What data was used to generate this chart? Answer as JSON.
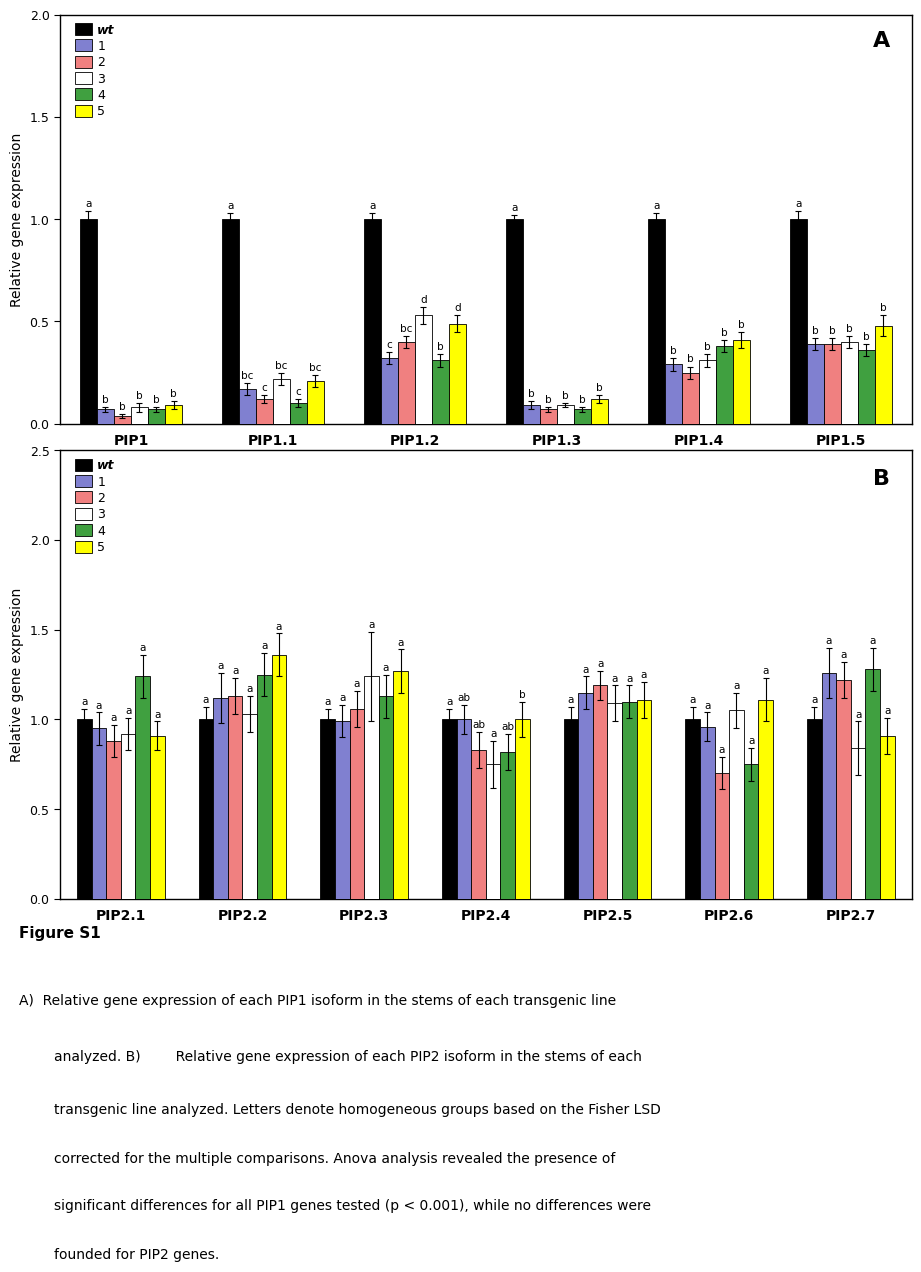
{
  "panel_A": {
    "groups": [
      "PIP1",
      "PIP1.1",
      "PIP1.2",
      "PIP1.3",
      "PIP1.4",
      "PIP1.5"
    ],
    "series_labels": [
      "wt",
      "1",
      "2",
      "3",
      "4",
      "5"
    ],
    "values": [
      [
        1.0,
        1.0,
        1.0,
        1.0,
        1.0,
        1.0
      ],
      [
        0.07,
        0.17,
        0.32,
        0.09,
        0.29,
        0.39
      ],
      [
        0.04,
        0.12,
        0.4,
        0.07,
        0.25,
        0.39
      ],
      [
        0.08,
        0.22,
        0.53,
        0.09,
        0.31,
        0.4
      ],
      [
        0.07,
        0.1,
        0.31,
        0.07,
        0.38,
        0.36
      ],
      [
        0.09,
        0.21,
        0.49,
        0.12,
        0.41,
        0.48
      ]
    ],
    "errors": [
      [
        0.04,
        0.03,
        0.03,
        0.02,
        0.03,
        0.04
      ],
      [
        0.01,
        0.03,
        0.03,
        0.02,
        0.03,
        0.03
      ],
      [
        0.01,
        0.02,
        0.03,
        0.01,
        0.03,
        0.03
      ],
      [
        0.02,
        0.03,
        0.04,
        0.01,
        0.03,
        0.03
      ],
      [
        0.01,
        0.02,
        0.03,
        0.01,
        0.03,
        0.03
      ],
      [
        0.02,
        0.03,
        0.04,
        0.02,
        0.04,
        0.05
      ]
    ],
    "letters": [
      [
        "a",
        "a",
        "a",
        "a",
        "a",
        "a"
      ],
      [
        "b",
        "bc",
        "c",
        "b",
        "b",
        "b"
      ],
      [
        "b",
        "c",
        "bc",
        "b",
        "b",
        "b"
      ],
      [
        "b",
        "bc",
        "d",
        "b",
        "b",
        "b"
      ],
      [
        "b",
        "c",
        "b",
        "b",
        "b",
        "b"
      ],
      [
        "b",
        "bc",
        "d",
        "b",
        "b",
        "b"
      ]
    ],
    "ylim": [
      0.0,
      2.0
    ],
    "yticks": [
      0.0,
      0.5,
      1.0,
      1.5,
      2.0
    ],
    "ylabel": "Relative gene expression",
    "panel_label": "A"
  },
  "panel_B": {
    "groups": [
      "PIP2.1",
      "PIP2.2",
      "PIP2.3",
      "PIP2.4",
      "PIP2.5",
      "PIP2.6",
      "PIP2.7"
    ],
    "series_labels": [
      "wt",
      "1",
      "2",
      "3",
      "4",
      "5"
    ],
    "values": [
      [
        1.0,
        1.0,
        1.0,
        1.0,
        1.0,
        1.0,
        1.0
      ],
      [
        0.95,
        1.12,
        0.99,
        1.0,
        1.15,
        0.96,
        1.26
      ],
      [
        0.88,
        1.13,
        1.06,
        0.83,
        1.19,
        0.7,
        1.22
      ],
      [
        0.92,
        1.03,
        1.24,
        0.75,
        1.09,
        1.05,
        0.84
      ],
      [
        1.24,
        1.25,
        1.13,
        0.82,
        1.1,
        0.75,
        1.28
      ],
      [
        0.91,
        1.36,
        1.27,
        1.0,
        1.11,
        1.11,
        0.91
      ]
    ],
    "errors": [
      [
        0.06,
        0.07,
        0.06,
        0.06,
        0.07,
        0.07,
        0.07
      ],
      [
        0.09,
        0.14,
        0.09,
        0.08,
        0.09,
        0.08,
        0.14
      ],
      [
        0.09,
        0.1,
        0.1,
        0.1,
        0.08,
        0.09,
        0.1
      ],
      [
        0.09,
        0.1,
        0.25,
        0.13,
        0.1,
        0.1,
        0.15
      ],
      [
        0.12,
        0.12,
        0.12,
        0.1,
        0.09,
        0.09,
        0.12
      ],
      [
        0.08,
        0.12,
        0.12,
        0.1,
        0.1,
        0.12,
        0.1
      ]
    ],
    "letters": [
      [
        "a",
        "a",
        "a",
        "a",
        "a",
        "a",
        "a"
      ],
      [
        "a",
        "a",
        "a",
        "ab",
        "a",
        "a",
        "a"
      ],
      [
        "a",
        "a",
        "a",
        "ab",
        "a",
        "a",
        "a"
      ],
      [
        "a",
        "a",
        "a",
        "a",
        "a",
        "a",
        "a"
      ],
      [
        "a",
        "a",
        "a",
        "ab",
        "a",
        "a",
        "a"
      ],
      [
        "a",
        "a",
        "a",
        "b",
        "a",
        "a",
        "a"
      ]
    ],
    "ylim": [
      0.0,
      2.5
    ],
    "yticks": [
      0.0,
      0.5,
      1.0,
      1.5,
      2.0,
      2.5
    ],
    "ylabel": "Relative gene expression",
    "panel_label": "B"
  },
  "bar_colors": [
    "#000000",
    "#8080D0",
    "#F08080",
    "#FFFFFF",
    "#40A040",
    "#FFFF00"
  ],
  "edge_color": "#000000",
  "bar_width": 0.12,
  "figure_caption_title": "Figure S1",
  "caption_lines": [
    "A)  Relative gene expression of each PIP1 isoform in the stems of each transgenic line",
    "        analyzed. B)        Relative gene expression of each PIP2 isoform in the stems of each",
    "        transgenic line analyzed. Letters denote homogeneous groups based on the Fisher LSD",
    "        corrected for the multiple comparisons. Anova analysis revealed the presence of",
    "        significant differences for all PIP1 genes tested (p < 0.001), while no differences were",
    "        founded for PIP2 genes."
  ]
}
